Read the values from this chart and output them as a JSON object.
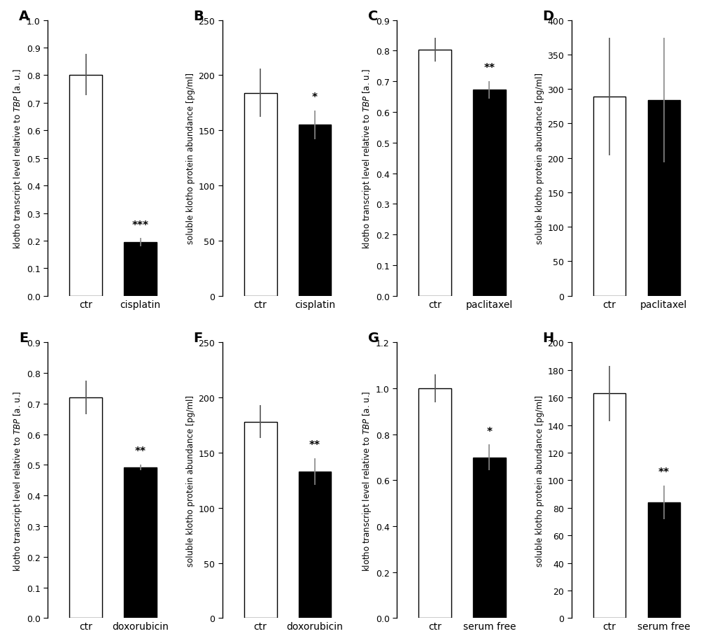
{
  "panels": [
    {
      "label": "A",
      "categories": [
        "ctr",
        "cisplatin"
      ],
      "values": [
        0.802,
        0.194
      ],
      "errors": [
        0.075,
        0.015
      ],
      "colors": [
        "white",
        "black"
      ],
      "ylabel": "klotho transcript level relative to TBP [a. u.]",
      "ylim": [
        0,
        1.0
      ],
      "yticks": [
        0.0,
        0.1,
        0.2,
        0.3,
        0.4,
        0.5,
        0.6,
        0.7,
        0.8,
        0.9,
        1.0
      ],
      "significance": [
        "",
        "***"
      ],
      "sig_fontsize": 11
    },
    {
      "label": "B",
      "categories": [
        "ctr",
        "cisplatin"
      ],
      "values": [
        184,
        155
      ],
      "errors": [
        22,
        13
      ],
      "colors": [
        "white",
        "black"
      ],
      "ylabel": "soluble klotho protein abundance [pg/ml]",
      "ylim": [
        0,
        250
      ],
      "yticks": [
        0,
        50,
        100,
        150,
        200,
        250
      ],
      "significance": [
        "",
        "*"
      ],
      "sig_fontsize": 11
    },
    {
      "label": "C",
      "categories": [
        "ctr",
        "paclitaxel"
      ],
      "values": [
        0.803,
        0.672
      ],
      "errors": [
        0.038,
        0.028
      ],
      "colors": [
        "white",
        "black"
      ],
      "ylabel": "klotho transcript level relative to TBP [a. u.]",
      "ylim": [
        0,
        0.9
      ],
      "yticks": [
        0.0,
        0.1,
        0.2,
        0.3,
        0.4,
        0.5,
        0.6,
        0.7,
        0.8,
        0.9
      ],
      "significance": [
        "",
        "**"
      ],
      "sig_fontsize": 11
    },
    {
      "label": "D",
      "categories": [
        "ctr",
        "paclitaxel"
      ],
      "values": [
        289,
        284
      ],
      "errors": [
        85,
        90
      ],
      "colors": [
        "white",
        "black"
      ],
      "ylabel": "soluble klotho protein abundance [pg/ml]",
      "ylim": [
        0,
        400
      ],
      "yticks": [
        0,
        50,
        100,
        150,
        200,
        250,
        300,
        350,
        400
      ],
      "significance": [
        "",
        ""
      ],
      "sig_fontsize": 11
    },
    {
      "label": "E",
      "categories": [
        "ctr",
        "doxorubicin"
      ],
      "values": [
        0.72,
        0.492
      ],
      "errors": [
        0.055,
        0.01
      ],
      "colors": [
        "white",
        "black"
      ],
      "ylabel": "klotho transcript level relative to TBP [a. u.]",
      "ylim": [
        0,
        0.9
      ],
      "yticks": [
        0.0,
        0.1,
        0.2,
        0.3,
        0.4,
        0.5,
        0.6,
        0.7,
        0.8,
        0.9
      ],
      "significance": [
        "",
        "**"
      ],
      "sig_fontsize": 11
    },
    {
      "label": "F",
      "categories": [
        "ctr",
        "doxorubicin"
      ],
      "values": [
        178,
        133
      ],
      "errors": [
        15,
        12
      ],
      "colors": [
        "white",
        "black"
      ],
      "ylabel": "soluble klotho protein abundance [pg/ml]",
      "ylim": [
        0,
        250
      ],
      "yticks": [
        0,
        50,
        100,
        150,
        200,
        250
      ],
      "significance": [
        "",
        "**"
      ],
      "sig_fontsize": 11
    },
    {
      "label": "G",
      "categories": [
        "ctr",
        "serum free"
      ],
      "values": [
        1.0,
        0.7
      ],
      "errors": [
        0.06,
        0.055
      ],
      "colors": [
        "white",
        "black"
      ],
      "ylabel": "klotho transcript level relative to TBP [a. u.]",
      "ylim": [
        0,
        1.2
      ],
      "yticks": [
        0.0,
        0.2,
        0.4,
        0.6,
        0.8,
        1.0,
        1.2
      ],
      "significance": [
        "",
        "*"
      ],
      "sig_fontsize": 11
    },
    {
      "label": "H",
      "categories": [
        "ctr",
        "serum free"
      ],
      "values": [
        163,
        84
      ],
      "errors": [
        20,
        12
      ],
      "colors": [
        "white",
        "black"
      ],
      "ylabel": "soluble klotho protein abundance [pg/ml]",
      "ylim": [
        0,
        200
      ],
      "yticks": [
        0,
        20,
        40,
        60,
        80,
        100,
        120,
        140,
        160,
        180,
        200
      ],
      "significance": [
        "",
        "**"
      ],
      "sig_fontsize": 11
    }
  ],
  "bar_width": 0.6,
  "background_color": "white",
  "tick_fontsize": 9,
  "axis_label_fontsize": 8.5,
  "panel_label_fontsize": 14,
  "xticklabel_fontsize": 10
}
